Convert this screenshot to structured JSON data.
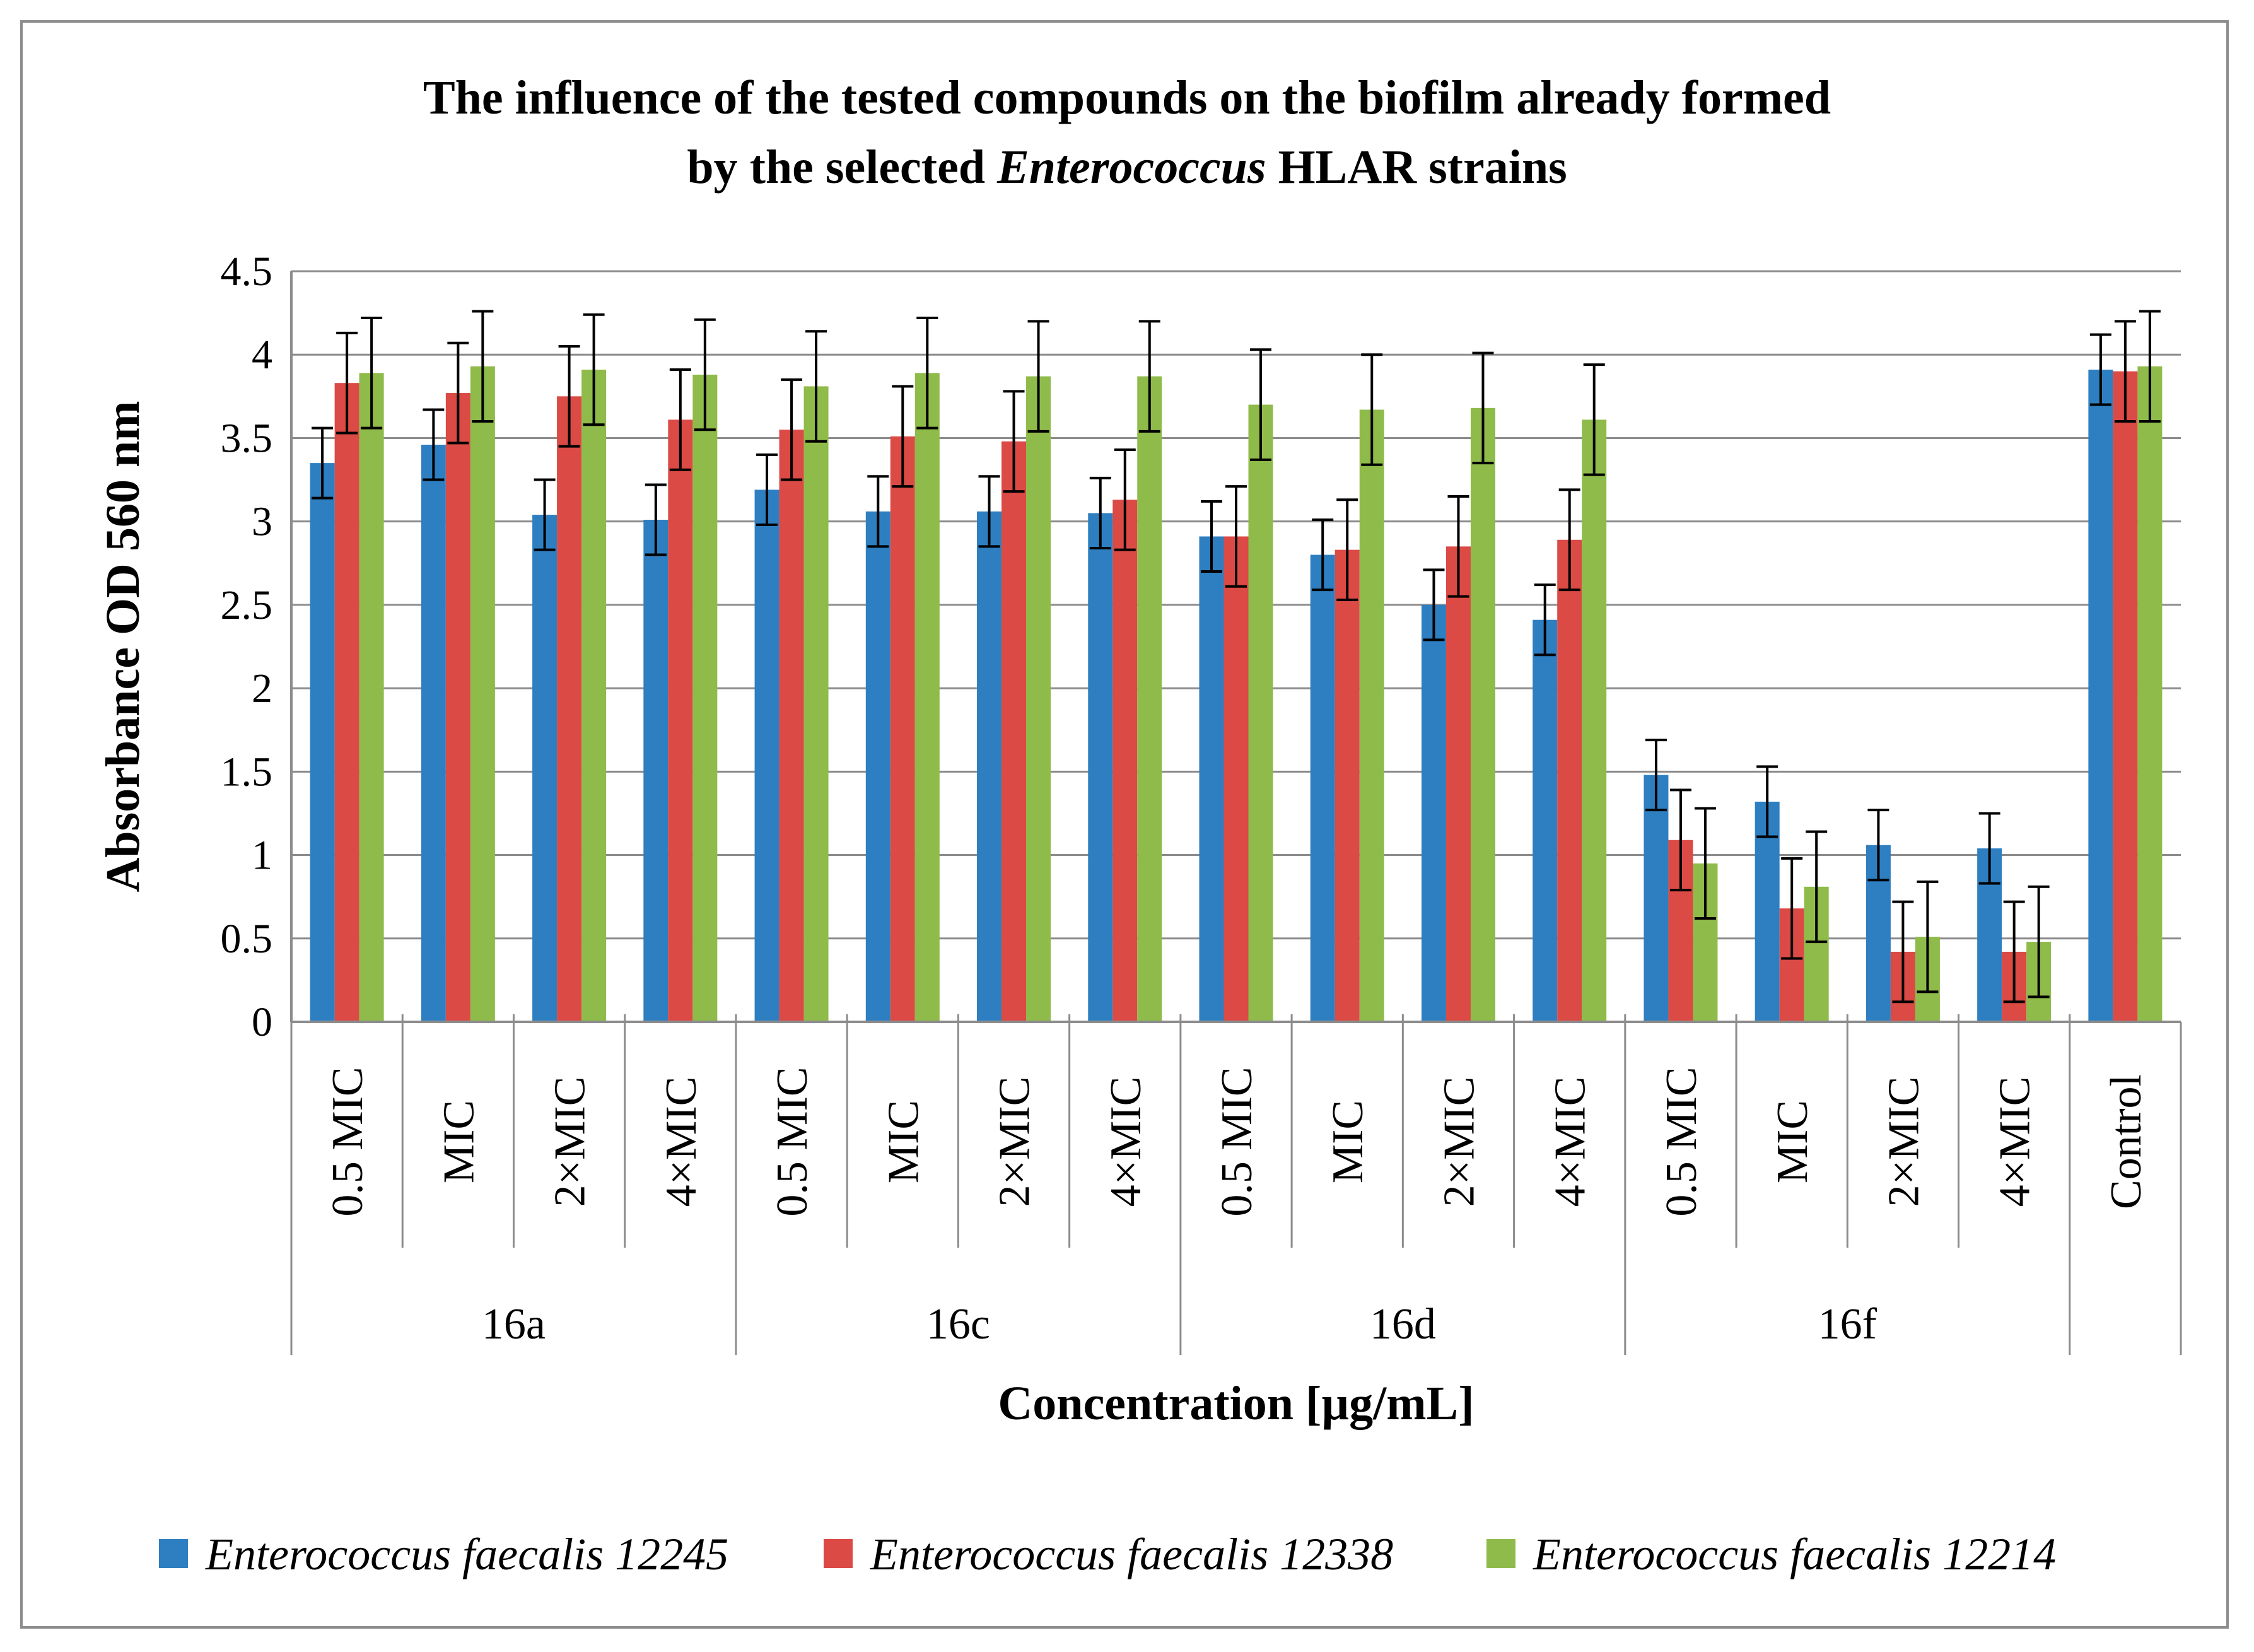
{
  "chart_data": {
    "type": "bar",
    "title_line1": "The influence of the tested compounds on the biofilm already formed",
    "title_line2_pre": "by the selected ",
    "title_line2_italic": "Enterococcus",
    "title_line2_post": " HLAR strains",
    "xlabel": "Concentration [µg/mL]",
    "ylabel": "Absorbance  OD 560 nm",
    "ylim": [
      0,
      4.5
    ],
    "yticks": [
      "0",
      "0.5",
      "1",
      "1.5",
      "2",
      "2.5",
      "3",
      "3.5",
      "4",
      "4.5"
    ],
    "grid": true,
    "legend_position": "bottom",
    "categories": [
      "0.5 MIC",
      "MIC",
      "2×MIC",
      "4×MIC",
      "0.5 MIC",
      "MIC",
      "2×MIC",
      "4×MIC",
      "0.5 MIC",
      "MIC",
      "2×MIC",
      "4×MIC",
      "0.5 MIC",
      "MIC",
      "2×MIC",
      "4×MIC",
      "Control"
    ],
    "groups": [
      {
        "label": "16a",
        "start": 0,
        "count": 4
      },
      {
        "label": "16c",
        "start": 4,
        "count": 4
      },
      {
        "label": "16d",
        "start": 8,
        "count": 4
      },
      {
        "label": "16f",
        "start": 12,
        "count": 4
      }
    ],
    "series": [
      {
        "name": "Enterococcus faecalis 12245",
        "color": "#2e7fc1",
        "values": [
          3.35,
          3.46,
          3.04,
          3.01,
          3.19,
          3.06,
          3.06,
          3.05,
          2.91,
          2.8,
          2.5,
          2.41,
          1.48,
          1.32,
          1.06,
          1.04,
          3.91
        ],
        "errors": [
          0.21,
          0.21,
          0.21,
          0.21,
          0.21,
          0.21,
          0.21,
          0.21,
          0.21,
          0.21,
          0.21,
          0.21,
          0.21,
          0.21,
          0.21,
          0.21,
          0.21
        ]
      },
      {
        "name": "Enterococcus faecalis 12338",
        "color": "#db4a45",
        "values": [
          3.83,
          3.77,
          3.75,
          3.61,
          3.55,
          3.51,
          3.48,
          3.13,
          2.91,
          2.83,
          2.85,
          2.89,
          1.09,
          0.68,
          0.42,
          0.42,
          3.9
        ],
        "errors": [
          0.3,
          0.3,
          0.3,
          0.3,
          0.3,
          0.3,
          0.3,
          0.3,
          0.3,
          0.3,
          0.3,
          0.3,
          0.3,
          0.3,
          0.3,
          0.3,
          0.3
        ]
      },
      {
        "name": "Enterococcus faecalis 12214",
        "color": "#8fbb4a",
        "values": [
          3.89,
          3.93,
          3.91,
          3.88,
          3.81,
          3.89,
          3.87,
          3.87,
          3.7,
          3.67,
          3.68,
          3.61,
          0.95,
          0.81,
          0.51,
          0.48,
          3.93
        ],
        "errors": [
          0.33,
          0.33,
          0.33,
          0.33,
          0.33,
          0.33,
          0.33,
          0.33,
          0.33,
          0.33,
          0.33,
          0.33,
          0.33,
          0.33,
          0.33,
          0.33,
          0.33
        ]
      }
    ]
  }
}
